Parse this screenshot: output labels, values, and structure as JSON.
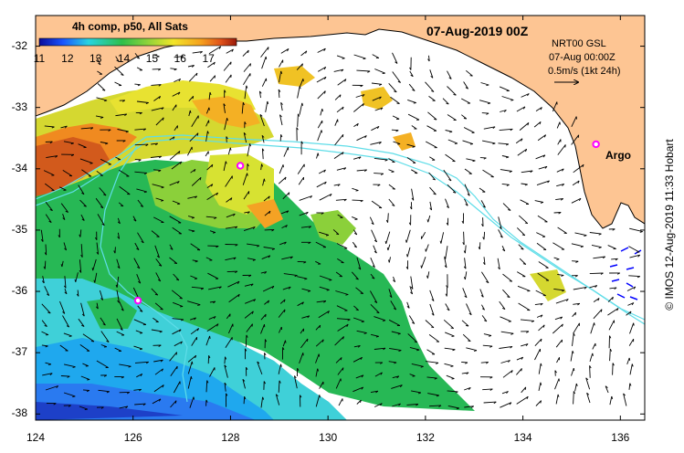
{
  "map": {
    "colorbar_title": "4h comp, p50, All Sats",
    "colorbar_ticks": [
      "11",
      "12",
      "13",
      "14",
      "15",
      "16",
      "17"
    ],
    "colorbar_range": [
      11,
      18
    ],
    "date_title": "07-Aug-2019 00Z",
    "vector_info": {
      "line1": "NRT00 GSL",
      "line2": "07-Aug 00:00Z",
      "line3": "0.5m/s (1kt 24h)"
    },
    "argo_label": "Argo",
    "credit": "© IMOS 12-Aug-2019 11:33 Hobart",
    "y_ticks": [
      "-32",
      "-33",
      "-34",
      "-35",
      "-36",
      "-37",
      "-38"
    ],
    "x_ticks": [
      "124",
      "126",
      "128",
      "130",
      "132",
      "134",
      "136"
    ],
    "lon_range": [
      124,
      136.5
    ],
    "lat_range": [
      -38.1,
      -31.5
    ],
    "argo_floats": [
      {
        "lon": 128.2,
        "lat": -33.95
      },
      {
        "lon": 126.1,
        "lat": -36.15
      },
      {
        "lon": 135.5,
        "lat": -33.6
      }
    ],
    "colors": {
      "land": "#fdc593",
      "bathymetry": "#5fdde8",
      "argo": "#ff00ff",
      "adcp": "#0000ff"
    }
  }
}
